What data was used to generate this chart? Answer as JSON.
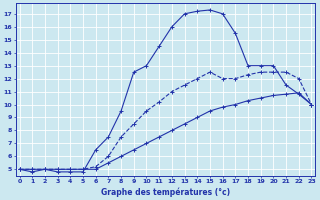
{
  "xlabel": "Graphe des températures (°c)",
  "x_values": [
    0,
    1,
    2,
    3,
    4,
    5,
    6,
    7,
    8,
    9,
    10,
    11,
    12,
    13,
    14,
    15,
    16,
    17,
    18,
    19,
    20,
    21,
    22,
    23
  ],
  "line_main_y": [
    5,
    4.8,
    5,
    4.8,
    4.8,
    4.8,
    6.5,
    7.5,
    9.5,
    12.5,
    13.0,
    14.5,
    16.0,
    17.0,
    17.2,
    17.3,
    17.0,
    15.5,
    13.0,
    13.0,
    13.0,
    11.5,
    10.8,
    10.0
  ],
  "line_dashed_y": [
    5.0,
    5.0,
    5.0,
    5.0,
    5.0,
    5.0,
    5.2,
    6.0,
    7.5,
    8.5,
    9.5,
    10.2,
    11.0,
    11.5,
    12.0,
    12.5,
    12.0,
    12.0,
    12.3,
    12.5,
    12.5,
    12.5,
    12.0,
    10.0
  ],
  "line_low_y": [
    5.0,
    5.0,
    5.0,
    5.0,
    5.0,
    5.0,
    5.0,
    5.5,
    6.0,
    6.5,
    7.0,
    7.5,
    8.0,
    8.5,
    9.0,
    9.5,
    9.8,
    10.0,
    10.3,
    10.5,
    10.7,
    10.8,
    10.9,
    10.0
  ],
  "bg_color": "#cce8f0",
  "grid_color": "#ffffff",
  "line_color": "#2233aa",
  "ylim_min": 4.5,
  "ylim_max": 17.8,
  "xlim_min": -0.3,
  "xlim_max": 23.3,
  "yticks": [
    5,
    6,
    7,
    8,
    9,
    10,
    11,
    12,
    13,
    14,
    15,
    16,
    17
  ],
  "xticks": [
    0,
    1,
    2,
    3,
    4,
    5,
    6,
    7,
    8,
    9,
    10,
    11,
    12,
    13,
    14,
    15,
    16,
    17,
    18,
    19,
    20,
    21,
    22,
    23
  ]
}
